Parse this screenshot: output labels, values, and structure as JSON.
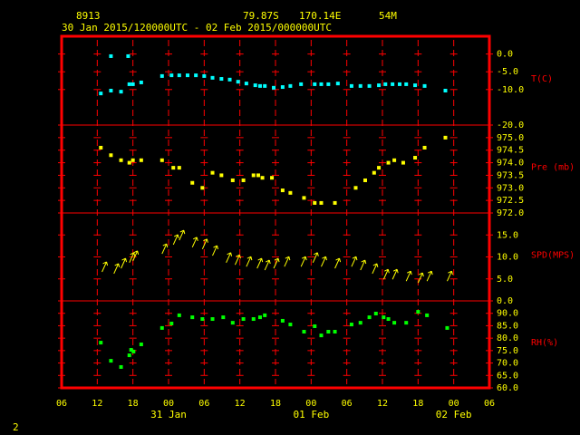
{
  "header": {
    "station": "8913",
    "latitude": "79.87S",
    "longitude": "170.14E",
    "elevation": "54M",
    "period": "30 Jan 2015/120000UTC - 02 Feb 2015/000000UTC"
  },
  "page_number": "2",
  "x_axis": {
    "xlim": [
      6,
      78
    ],
    "xticks": [
      {
        "value": 6,
        "label": "06"
      },
      {
        "value": 12,
        "label": "12"
      },
      {
        "value": 18,
        "label": "18"
      },
      {
        "value": 24,
        "label": "00"
      },
      {
        "value": 30,
        "label": "06"
      },
      {
        "value": 36,
        "label": "12"
      },
      {
        "value": 42,
        "label": "18"
      },
      {
        "value": 48,
        "label": "00"
      },
      {
        "value": 54,
        "label": "06"
      },
      {
        "value": 60,
        "label": "12"
      },
      {
        "value": 66,
        "label": "18"
      },
      {
        "value": 72,
        "label": "00"
      },
      {
        "value": 78,
        "label": "06"
      }
    ],
    "dates": [
      {
        "value": 24,
        "label": "31 Jan"
      },
      {
        "value": 48,
        "label": "01 Feb"
      },
      {
        "value": 72,
        "label": "02 Feb"
      }
    ]
  },
  "chart_data": [
    {
      "type": "scatter",
      "ylabel": "T(C)",
      "color": "#00ffff",
      "ylim": [
        -20,
        5
      ],
      "yticks": [
        {
          "value": 0,
          "label": "0.0"
        },
        {
          "value": -5,
          "label": "-5.0"
        },
        {
          "value": -10,
          "label": "-10.0"
        },
        {
          "value": -20,
          "label": "-20.0"
        }
      ],
      "x": [
        12.6,
        14.3,
        16.0,
        17.4,
        18.0,
        19.4,
        14.3,
        17.2,
        22.9,
        24.5,
        25.8,
        27.2,
        28.6,
        30.0,
        31.4,
        32.9,
        34.3,
        35.7,
        37.1,
        38.6,
        39.4,
        40.2,
        41.7,
        43.2,
        44.5,
        46.3,
        48.6,
        49.7,
        50.9,
        52.5,
        54.8,
        56.3,
        57.8,
        59.4,
        60.5,
        61.7,
        62.9,
        64.0,
        65.5,
        67.1,
        70.6
      ],
      "values": [
        -11.1,
        -10.3,
        -10.6,
        -8.5,
        -8.5,
        -8.0,
        -0.6,
        -0.6,
        -6.2,
        -6.0,
        -6.0,
        -6.0,
        -6.0,
        -6.2,
        -6.7,
        -7.0,
        -7.2,
        -7.8,
        -8.3,
        -8.8,
        -9.0,
        -9.0,
        -9.5,
        -9.3,
        -9.0,
        -8.5,
        -8.5,
        -8.5,
        -8.5,
        -8.3,
        -9.0,
        -9.0,
        -9.0,
        -8.8,
        -8.5,
        -8.5,
        -8.5,
        -8.5,
        -8.8,
        -9.0,
        -10.3
      ]
    },
    {
      "type": "scatter",
      "ylabel": "Pre (mb)",
      "color": "#ffff00",
      "ylim": [
        972,
        975.5
      ],
      "yticks": [
        {
          "value": 975,
          "label": "975.0"
        },
        {
          "value": 974.5,
          "label": "974.5"
        },
        {
          "value": 974,
          "label": "974.0"
        },
        {
          "value": 973.5,
          "label": "973.5"
        },
        {
          "value": 973,
          "label": "973.0"
        },
        {
          "value": 972.5,
          "label": "972.5"
        },
        {
          "value": 972,
          "label": "972.0"
        }
      ],
      "x": [
        12.6,
        14.3,
        16.0,
        17.4,
        18.0,
        19.4,
        22.9,
        24.8,
        25.8,
        28.0,
        29.7,
        31.4,
        32.9,
        34.8,
        36.6,
        38.3,
        39.1,
        39.8,
        41.4,
        43.2,
        44.5,
        46.8,
        48.6,
        49.7,
        52.0,
        55.5,
        57.1,
        58.6,
        59.4,
        61.0,
        62.0,
        63.5,
        65.5,
        67.1,
        70.6
      ],
      "values": [
        974.6,
        974.3,
        974.1,
        974.0,
        974.1,
        974.1,
        974.1,
        973.8,
        973.8,
        973.2,
        973.0,
        973.6,
        973.5,
        973.3,
        973.3,
        973.5,
        973.5,
        973.4,
        973.4,
        972.9,
        972.8,
        972.6,
        972.4,
        972.4,
        972.4,
        973.0,
        973.3,
        973.6,
        973.8,
        974.0,
        974.1,
        974.0,
        974.2,
        974.6,
        975.0
      ]
    },
    {
      "type": "vector",
      "ylabel": "SPD(MPS)",
      "color": "#ffff00",
      "ylim": [
        0,
        20
      ],
      "yticks": [
        {
          "value": 15,
          "label": "15.0"
        },
        {
          "value": 10,
          "label": "10.0"
        },
        {
          "value": 5,
          "label": "5.0"
        },
        {
          "value": 0,
          "label": "0.0"
        }
      ],
      "x": [
        12.8,
        14.8,
        16.0,
        17.4,
        18.0,
        22.9,
        24.8,
        25.8,
        28.0,
        29.7,
        31.4,
        33.7,
        35.2,
        37.1,
        38.9,
        40.2,
        41.7,
        43.5,
        46.3,
        48.3,
        49.7,
        52.0,
        54.8,
        56.3,
        58.3,
        60.2,
        61.7,
        64.0,
        66.0,
        67.5,
        70.9
      ],
      "values": [
        6.6,
        6.2,
        7.4,
        8.7,
        9.1,
        10.7,
        12.8,
        13.8,
        12.2,
        11.8,
        10.3,
        8.7,
        8.2,
        7.8,
        7.4,
        7.0,
        7.4,
        7.8,
        7.8,
        8.7,
        7.8,
        7.4,
        7.8,
        7.0,
        6.2,
        4.9,
        4.9,
        4.5,
        4.1,
        4.5,
        4.5
      ]
    },
    {
      "type": "scatter",
      "ylabel": "RH(%)",
      "color": "#00ff00",
      "ylim": [
        60,
        95
      ],
      "yticks": [
        {
          "value": 90,
          "label": "90.0"
        },
        {
          "value": 85,
          "label": "85.0"
        },
        {
          "value": 80,
          "label": "80.0"
        },
        {
          "value": 75,
          "label": "75.0"
        },
        {
          "value": 70,
          "label": "70.0"
        },
        {
          "value": 65,
          "label": "65.0"
        },
        {
          "value": 60,
          "label": "60.0"
        }
      ],
      "x": [
        12.6,
        14.3,
        16.0,
        17.4,
        17.7,
        18.1,
        19.4,
        22.9,
        24.5,
        25.8,
        28.0,
        29.7,
        31.4,
        33.2,
        34.8,
        36.6,
        38.3,
        39.4,
        40.2,
        43.2,
        44.5,
        46.8,
        48.6,
        49.7,
        50.9,
        52.0,
        54.8,
        56.3,
        57.8,
        58.9,
        60.2,
        61.0,
        62.0,
        64.0,
        66.0,
        67.5,
        70.9
      ],
      "values": [
        78.2,
        70.9,
        68.4,
        73.1,
        75.3,
        74.6,
        77.5,
        84.1,
        85.9,
        89.2,
        88.4,
        87.7,
        87.7,
        88.4,
        86.2,
        87.7,
        87.7,
        88.4,
        89.2,
        87.0,
        85.5,
        82.6,
        84.8,
        81.1,
        82.6,
        82.6,
        85.5,
        86.2,
        88.4,
        89.9,
        88.4,
        87.7,
        86.2,
        86.2,
        90.6,
        89.2,
        84.1
      ]
    }
  ]
}
